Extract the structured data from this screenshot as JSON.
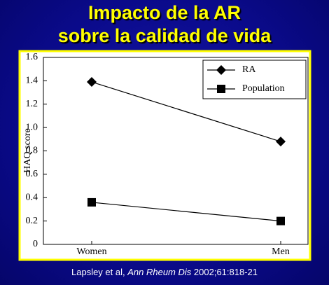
{
  "title_lines": [
    "Impacto de la AR",
    "sobre la calidad de vida"
  ],
  "citation": {
    "authors": "Lapsley et al,",
    "journal": "Ann Rheum Dis",
    "reference": "2002;61:818-21"
  },
  "chart_data": {
    "type": "line",
    "y_label": "HAQ score",
    "categories": [
      "Women",
      "Men"
    ],
    "series": [
      {
        "name": "RA",
        "color": "#000000",
        "marker": "diamond",
        "values": [
          1.39,
          0.88
        ]
      },
      {
        "name": "Population",
        "color": "#000000",
        "marker": "square",
        "values": [
          0.36,
          0.2
        ]
      }
    ],
    "ylim": [
      0,
      1.6
    ],
    "yticks": [
      0,
      0.2,
      0.4,
      0.6,
      0.8,
      {
        "value": 1,
        "label": "1.0"
      },
      1.2,
      1.4,
      1.6
    ],
    "legend": "upper right"
  }
}
